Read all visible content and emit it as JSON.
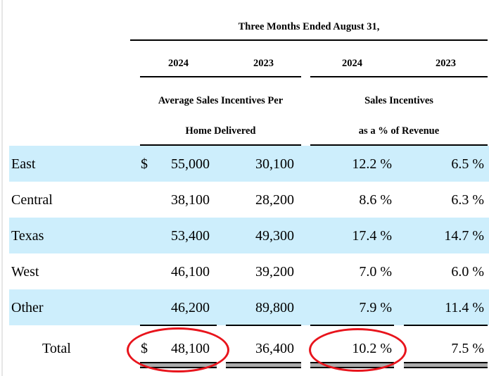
{
  "header": {
    "period": "Three Months Ended August 31,",
    "years": [
      "2024",
      "2023",
      "2024",
      "2023"
    ],
    "group1": [
      "Average Sales Incentives Per",
      "Home Delivered"
    ],
    "group2": [
      "Sales Incentives",
      "as a % of Revenue"
    ]
  },
  "rows": [
    {
      "label": "East",
      "dollar": "$",
      "v1": "55,000",
      "v2": "30,100",
      "p1": "12.2 %",
      "p2": "6.5 %",
      "shaded": true
    },
    {
      "label": "Central",
      "dollar": "",
      "v1": "38,100",
      "v2": "28,200",
      "p1": "8.6 %",
      "p2": "6.3 %",
      "shaded": false
    },
    {
      "label": "Texas",
      "dollar": "",
      "v1": "53,400",
      "v2": "49,300",
      "p1": "17.4 %",
      "p2": "14.7 %",
      "shaded": true
    },
    {
      "label": "West",
      "dollar": "",
      "v1": "46,100",
      "v2": "39,200",
      "p1": "7.0 %",
      "p2": "6.0 %",
      "shaded": false
    },
    {
      "label": "Other",
      "dollar": "",
      "v1": "46,200",
      "v2": "89,800",
      "p1": "7.9 %",
      "p2": "11.4 %",
      "shaded": true
    }
  ],
  "total": {
    "label": "Total",
    "dollar": "$",
    "v1": "48,100",
    "v2": "36,400",
    "p1": "10.2 %",
    "p2": "7.5 %"
  },
  "colors": {
    "band": "#cdeefc",
    "annotation": "#e8141c"
  }
}
